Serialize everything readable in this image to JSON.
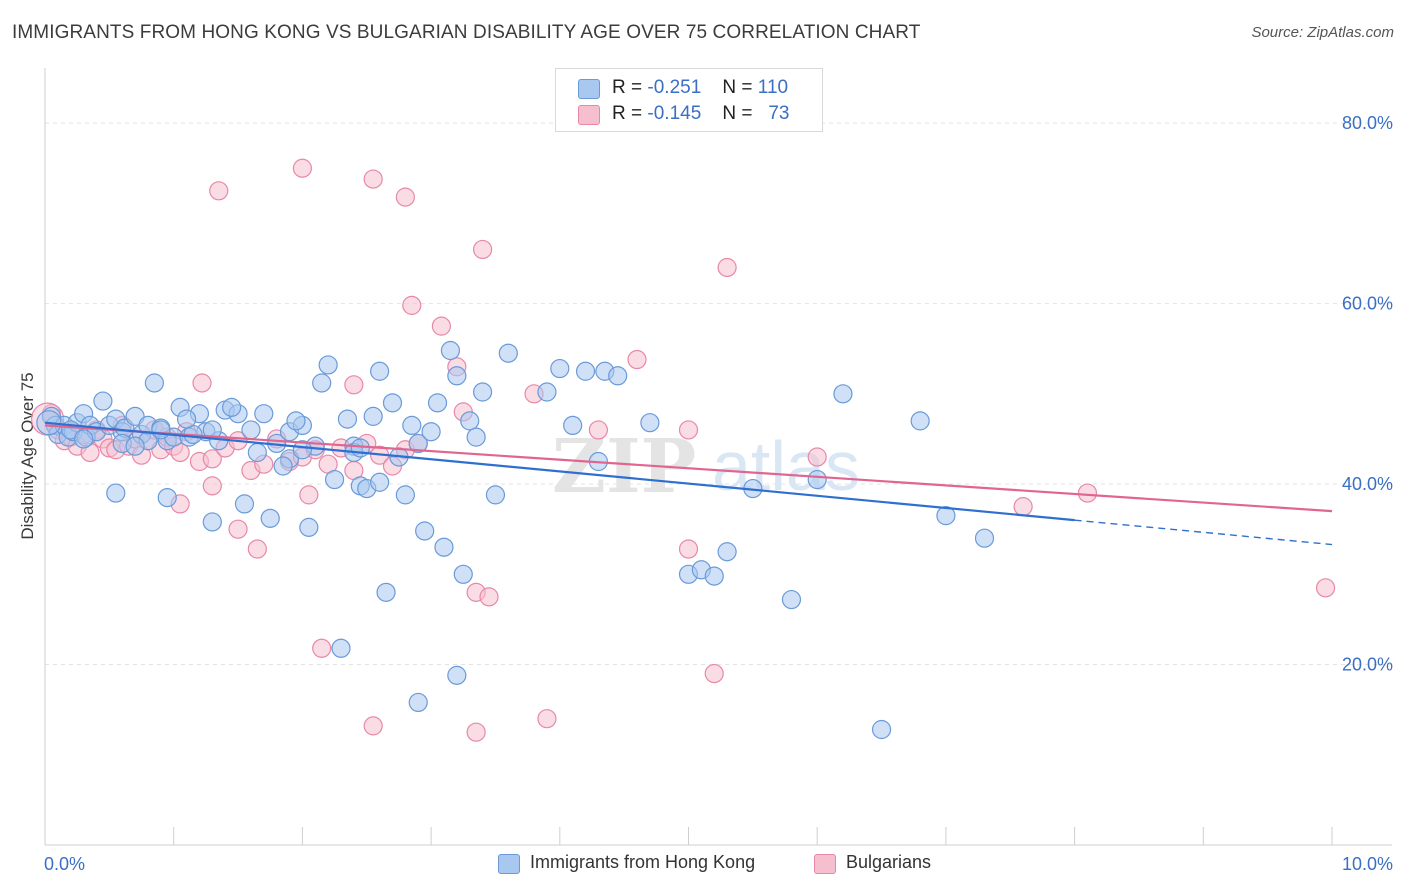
{
  "title": "IMMIGRANTS FROM HONG KONG VS BULGARIAN DISABILITY AGE OVER 75 CORRELATION CHART",
  "source": "Source: ZipAtlas.com",
  "watermark": "ZIPatlas",
  "colors": {
    "blue_fill": "#a9c8f0",
    "blue_stroke": "#6a9ad8",
    "blue_line": "#2f6fd0",
    "pink_fill": "#f6bfd0",
    "pink_stroke": "#e888a8",
    "pink_line": "#e06690",
    "axis_text": "#3a6fc4",
    "grid": "#e3e3e3"
  },
  "legend_top": {
    "rows": [
      {
        "r_label": "R =",
        "r_value": "-0.251",
        "n_label": "N =",
        "n_value": "110"
      },
      {
        "r_label": "R =",
        "r_value": "-0.145",
        "n_label": "N =",
        "n_value": "73"
      }
    ]
  },
  "legend_bottom": {
    "items": [
      {
        "label": "Immigrants from Hong Kong"
      },
      {
        "label": "Bulgarians"
      }
    ]
  },
  "chart_data": {
    "type": "scatter",
    "xlabel": "",
    "ylabel": "Disability Age Over 75",
    "xlim": [
      0,
      10
    ],
    "ylim": [
      0,
      85
    ],
    "x_tick_labels": [
      {
        "value": 0,
        "label": "0.0%"
      },
      {
        "value": 10,
        "label": "10.0%"
      }
    ],
    "y_tick_labels": [
      {
        "value": 20,
        "label": "20.0%"
      },
      {
        "value": 40,
        "label": "40.0%"
      },
      {
        "value": 60,
        "label": "60.0%"
      },
      {
        "value": 80,
        "label": "80.0%"
      }
    ],
    "grid": true,
    "series": [
      {
        "name": "Immigrants from Hong Kong",
        "color": "#a9c8f0",
        "trend": {
          "x": [
            0,
            8
          ],
          "y": [
            46.8,
            36.0
          ],
          "dashed_to": [
            10,
            33.3
          ]
        },
        "points": [
          [
            0.05,
            47.5
          ],
          [
            0.08,
            46.5
          ],
          [
            0.1,
            45.5
          ],
          [
            0.15,
            46.5
          ],
          [
            0.18,
            45.2
          ],
          [
            0.22,
            45.8
          ],
          [
            0.25,
            46.8
          ],
          [
            0.3,
            47.8
          ],
          [
            0.32,
            45.2
          ],
          [
            0.35,
            46.5
          ],
          [
            0.4,
            45.8
          ],
          [
            0.45,
            49.2
          ],
          [
            0.5,
            46.5
          ],
          [
            0.55,
            47.2
          ],
          [
            0.6,
            45.8
          ],
          [
            0.62,
            46.2
          ],
          [
            0.7,
            47.5
          ],
          [
            0.75,
            45.5
          ],
          [
            0.8,
            46.5
          ],
          [
            0.85,
            51.2
          ],
          [
            0.9,
            46.2
          ],
          [
            0.95,
            44.8
          ],
          [
            1.0,
            45.2
          ],
          [
            1.05,
            48.5
          ],
          [
            1.12,
            45.2
          ],
          [
            1.2,
            47.8
          ],
          [
            1.25,
            45.8
          ],
          [
            1.35,
            44.8
          ],
          [
            1.4,
            48.2
          ],
          [
            1.5,
            47.8
          ],
          [
            1.6,
            46.0
          ],
          [
            1.7,
            47.8
          ],
          [
            1.8,
            44.5
          ],
          [
            1.9,
            45.8
          ],
          [
            2.0,
            46.5
          ],
          [
            2.1,
            44.2
          ],
          [
            2.15,
            51.2
          ],
          [
            2.2,
            53.2
          ],
          [
            2.25,
            40.5
          ],
          [
            2.35,
            47.2
          ],
          [
            2.4,
            44.2
          ],
          [
            2.45,
            39.8
          ],
          [
            2.55,
            47.5
          ],
          [
            2.6,
            52.5
          ],
          [
            2.7,
            49.0
          ],
          [
            2.75,
            43.0
          ],
          [
            2.85,
            46.5
          ],
          [
            2.9,
            44.5
          ],
          [
            3.0,
            45.8
          ],
          [
            3.05,
            49.0
          ],
          [
            3.15,
            54.8
          ],
          [
            3.2,
            52.0
          ],
          [
            3.3,
            47.0
          ],
          [
            3.35,
            45.2
          ],
          [
            3.4,
            50.2
          ],
          [
            3.6,
            54.5
          ],
          [
            3.9,
            50.2
          ],
          [
            4.1,
            46.5
          ],
          [
            4.3,
            42.5
          ],
          [
            4.35,
            52.5
          ],
          [
            4.45,
            52.0
          ],
          [
            4.7,
            46.8
          ],
          [
            5.0,
            30.0
          ],
          [
            5.1,
            30.5
          ],
          [
            5.2,
            29.8
          ],
          [
            5.3,
            32.5
          ],
          [
            5.5,
            39.5
          ],
          [
            5.8,
            27.2
          ],
          [
            6.0,
            40.5
          ],
          [
            6.2,
            50.0
          ],
          [
            6.5,
            12.8
          ],
          [
            6.8,
            47.0
          ],
          [
            7.0,
            36.5
          ],
          [
            7.3,
            34.0
          ],
          [
            0.2,
            46.0
          ],
          [
            0.55,
            39.0
          ],
          [
            0.95,
            38.5
          ],
          [
            1.3,
            35.8
          ],
          [
            1.55,
            37.8
          ],
          [
            1.75,
            36.2
          ],
          [
            1.9,
            42.8
          ],
          [
            2.0,
            43.8
          ],
          [
            2.4,
            43.5
          ],
          [
            2.5,
            39.5
          ],
          [
            2.65,
            28.0
          ],
          [
            2.8,
            38.8
          ],
          [
            2.95,
            34.8
          ],
          [
            3.1,
            33.0
          ],
          [
            3.25,
            30.0
          ],
          [
            3.5,
            38.8
          ],
          [
            0.3,
            45.0
          ],
          [
            0.6,
            44.5
          ],
          [
            0.8,
            44.8
          ],
          [
            1.15,
            45.5
          ],
          [
            1.45,
            48.5
          ],
          [
            1.65,
            43.5
          ],
          [
            1.85,
            42.0
          ],
          [
            2.05,
            35.2
          ],
          [
            2.3,
            21.8
          ],
          [
            2.9,
            15.8
          ],
          [
            3.2,
            18.8
          ],
          [
            4.0,
            52.8
          ],
          [
            4.2,
            52.5
          ],
          [
            1.3,
            46.0
          ],
          [
            0.7,
            44.2
          ],
          [
            0.9,
            46.0
          ],
          [
            1.1,
            47.2
          ],
          [
            1.95,
            47.0
          ],
          [
            2.45,
            44.0
          ],
          [
            2.6,
            40.2
          ]
        ]
      },
      {
        "name": "Bulgarians",
        "color": "#f6bfd0",
        "trend": {
          "x": [
            0,
            10
          ],
          "y": [
            46.5,
            37.0
          ]
        },
        "points": [
          [
            0.05,
            47.8
          ],
          [
            0.1,
            46.0
          ],
          [
            0.15,
            44.8
          ],
          [
            0.2,
            45.2
          ],
          [
            0.25,
            44.2
          ],
          [
            0.3,
            45.5
          ],
          [
            0.35,
            43.5
          ],
          [
            0.4,
            46.0
          ],
          [
            0.45,
            45.0
          ],
          [
            0.5,
            44.0
          ],
          [
            0.55,
            43.8
          ],
          [
            0.6,
            46.5
          ],
          [
            0.65,
            44.2
          ],
          [
            0.7,
            45.0
          ],
          [
            0.75,
            43.2
          ],
          [
            0.8,
            44.8
          ],
          [
            0.85,
            46.0
          ],
          [
            0.9,
            43.8
          ],
          [
            0.95,
            45.2
          ],
          [
            1.0,
            44.2
          ],
          [
            1.05,
            43.5
          ],
          [
            1.1,
            45.8
          ],
          [
            1.2,
            42.5
          ],
          [
            1.3,
            42.8
          ],
          [
            1.4,
            44.0
          ],
          [
            1.5,
            44.8
          ],
          [
            1.6,
            41.5
          ],
          [
            1.7,
            42.2
          ],
          [
            1.8,
            45.0
          ],
          [
            1.9,
            42.5
          ],
          [
            2.0,
            43.0
          ],
          [
            2.1,
            43.8
          ],
          [
            2.2,
            42.2
          ],
          [
            2.3,
            44.0
          ],
          [
            2.4,
            41.5
          ],
          [
            2.5,
            44.5
          ],
          [
            2.6,
            43.2
          ],
          [
            2.7,
            42.0
          ],
          [
            2.8,
            43.8
          ],
          [
            2.9,
            44.5
          ],
          [
            1.35,
            72.5
          ],
          [
            2.0,
            75.0
          ],
          [
            2.55,
            73.8
          ],
          [
            2.8,
            71.8
          ],
          [
            3.4,
            66.0
          ],
          [
            5.3,
            64.0
          ],
          [
            2.85,
            59.8
          ],
          [
            3.08,
            57.5
          ],
          [
            3.2,
            53.0
          ],
          [
            4.6,
            53.8
          ],
          [
            1.22,
            51.2
          ],
          [
            2.4,
            51.0
          ],
          [
            3.8,
            50.0
          ],
          [
            3.25,
            48.0
          ],
          [
            4.3,
            46.0
          ],
          [
            5.0,
            46.0
          ],
          [
            6.0,
            43.0
          ],
          [
            7.6,
            37.5
          ],
          [
            8.1,
            39.0
          ],
          [
            9.95,
            28.5
          ],
          [
            1.5,
            35.0
          ],
          [
            1.65,
            32.8
          ],
          [
            1.3,
            39.8
          ],
          [
            2.05,
            38.8
          ],
          [
            2.15,
            21.8
          ],
          [
            2.55,
            13.2
          ],
          [
            3.35,
            28.0
          ],
          [
            3.45,
            27.5
          ],
          [
            3.35,
            12.5
          ],
          [
            3.9,
            14.0
          ],
          [
            5.2,
            19.0
          ],
          [
            5.0,
            32.8
          ],
          [
            1.05,
            37.8
          ]
        ]
      }
    ]
  }
}
